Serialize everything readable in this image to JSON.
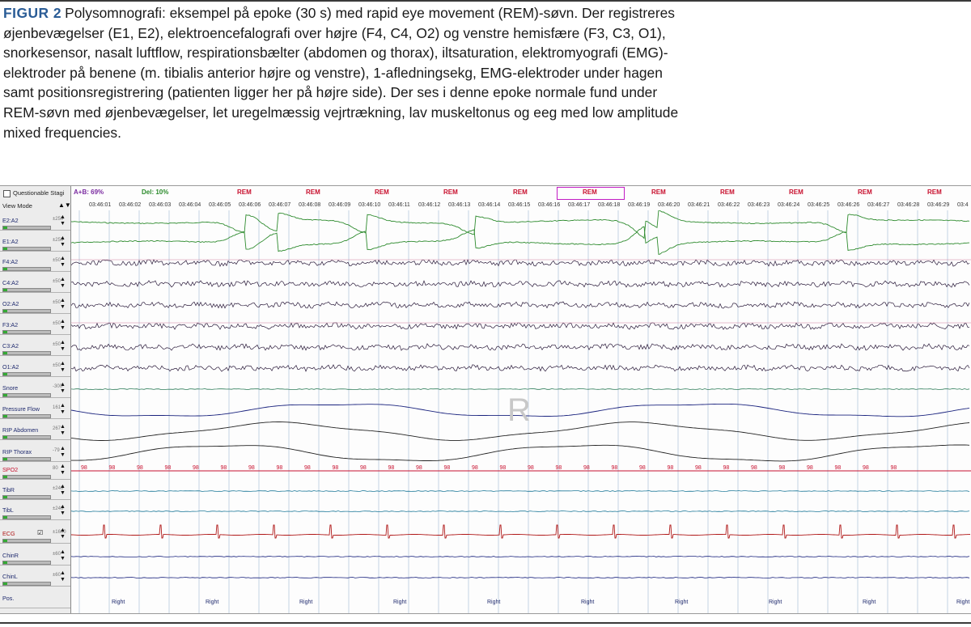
{
  "caption": {
    "figure_label": "FIGUR 2",
    "text": "Polysomnografi: eksempel på epoke (30 s) med rapid eye movement (REM)-søvn. Der registreres øjenbevægelser (E1, E2), elektroencefalografi over højre (F4, C4, O2) og venstre hemisfære (F3, C3, O1), snorkesensor, nasalt luftflow, respirationsbælter (abdomen og thorax), iltsaturation, elektromyografi (EMG)-elektroder på benene (m. tibialis anterior højre og venstre), 1-afledningsekg, EMG-elektroder under hagen samt positionsregistrering (patienten ligger her på højre side). Der ses i denne epoke normale fund under REM-søvn med øjenbevægelser, let uregelmæssig vejrtrækning, lav muskeltonus og eeg med low amplitude mixed frequencies."
  },
  "header": {
    "questionable_label": "Questionable Stagi",
    "view_mode_label": "View Mode",
    "ab_label": "A+B: 69%",
    "del_label": "Del: 10%",
    "stages": [
      "REM",
      "REM",
      "REM",
      "REM",
      "REM",
      "REM",
      "REM",
      "REM",
      "REM",
      "REM",
      "REM"
    ],
    "selected_stage_index": 5,
    "times": [
      "03:46:01",
      "03:46:02",
      "03:46:03",
      "03:46:04",
      "03:46:05",
      "03:46:06",
      "03:46:07",
      "03:46:08",
      "03:46:09",
      "03:46:10",
      "03:46:11",
      "03:46:12",
      "03:46:13",
      "03:46:14",
      "03:46:15",
      "03:46:16",
      "03:46:17",
      "03:46:18",
      "03:46:19",
      "03:46:20",
      "03:46:21",
      "03:46:22",
      "03:46:23",
      "03:46:24",
      "03:46:25",
      "03:46:26",
      "03:46:27",
      "03:46:28",
      "03:46:29",
      "03:4"
    ]
  },
  "channels": [
    {
      "label": "E2:A2",
      "scale": "±250",
      "color": "#2e8b2e",
      "type": "eog1",
      "checkbox": false
    },
    {
      "label": "E1:A2",
      "scale": "±250",
      "color": "#2e8b2e",
      "type": "eog2",
      "checkbox": false
    },
    {
      "label": "F4:A2",
      "scale": "±50",
      "color": "#2a1a3a",
      "type": "eeg",
      "checkbox": false
    },
    {
      "label": "C4:A2",
      "scale": "±50",
      "color": "#2a1a3a",
      "type": "eeg",
      "checkbox": false
    },
    {
      "label": "O2:A2",
      "scale": "±50",
      "color": "#2a1a3a",
      "type": "eeg",
      "checkbox": false
    },
    {
      "label": "F3:A2",
      "scale": "±50",
      "color": "#2a1a3a",
      "type": "eeg",
      "checkbox": false
    },
    {
      "label": "C3:A2",
      "scale": "±50",
      "color": "#2a1a3a",
      "type": "eeg",
      "checkbox": false
    },
    {
      "label": "O1:A2",
      "scale": "±50",
      "color": "#2a1a3a",
      "type": "eeg",
      "checkbox": false
    },
    {
      "label": "Snore",
      "scale": "-300",
      "color": "#2e7d5a",
      "type": "flat",
      "checkbox": false
    },
    {
      "label": "Pressure Flow",
      "scale": "161",
      "color": "#1a237e",
      "type": "resp",
      "checkbox": false
    },
    {
      "label": "RIP Abdomen",
      "scale": "267",
      "color": "#222222",
      "type": "resp2",
      "checkbox": false
    },
    {
      "label": "RIP Thorax",
      "scale": "-79",
      "color": "#222222",
      "type": "resp3",
      "checkbox": false
    },
    {
      "label": "SPO2",
      "scale": "80",
      "color": "#c8102e",
      "type": "spo2",
      "checkbox": false
    },
    {
      "label": "TibR",
      "scale": "±240",
      "color": "#1f7a9a",
      "type": "flat",
      "checkbox": false
    },
    {
      "label": "TibL",
      "scale": "±240",
      "color": "#1f7a9a",
      "type": "flat",
      "checkbox": false
    },
    {
      "label": "ECG",
      "scale": "±1600",
      "color": "#b01818",
      "type": "ecg",
      "checkbox": true
    },
    {
      "label": "ChinR",
      "scale": "±60",
      "color": "#1a237e",
      "type": "flat",
      "checkbox": false
    },
    {
      "label": "ChinL",
      "scale": "±60",
      "color": "#1a237e",
      "type": "flat",
      "checkbox": false
    },
    {
      "label": "Pos.",
      "scale": "",
      "color": "#1f2a6e",
      "type": "pos",
      "checkbox": false
    }
  ],
  "spo2_value": "98",
  "position_label": "Right",
  "watermark": "R",
  "colors": {
    "rem": "#c8102e",
    "selection": "#c21cc4",
    "eog": "#2e8b2e",
    "ecg": "#b01818"
  }
}
